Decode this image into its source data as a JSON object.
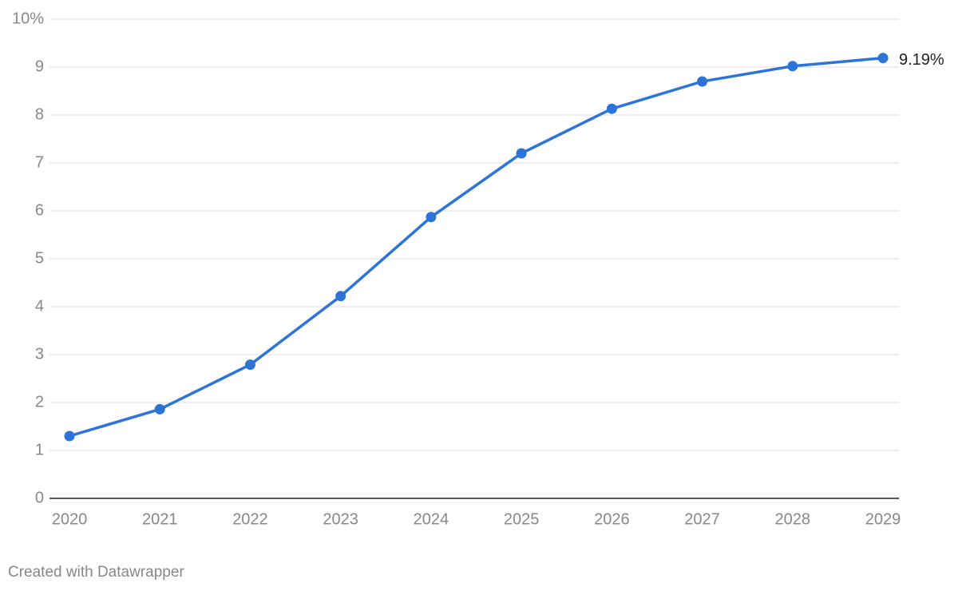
{
  "chart_data": {
    "type": "line",
    "categories": [
      "2020",
      "2021",
      "2022",
      "2023",
      "2024",
      "2025",
      "2026",
      "2027",
      "2028",
      "2029"
    ],
    "series": [
      {
        "color": "#2c74d8",
        "values": [
          1.3,
          1.86,
          2.79,
          4.22,
          5.87,
          7.2,
          8.13,
          8.7,
          9.02,
          9.19
        ],
        "value_labels": [
          null,
          null,
          null,
          null,
          null,
          null,
          null,
          null,
          null,
          "9.19%"
        ]
      }
    ],
    "ylim": [
      0,
      10
    ],
    "yticks": [
      0,
      1,
      2,
      3,
      4,
      5,
      6,
      7,
      8,
      9,
      {
        "value": 10,
        "label": "10%"
      }
    ],
    "grid": true,
    "credit": "Created with Datawrapper"
  }
}
